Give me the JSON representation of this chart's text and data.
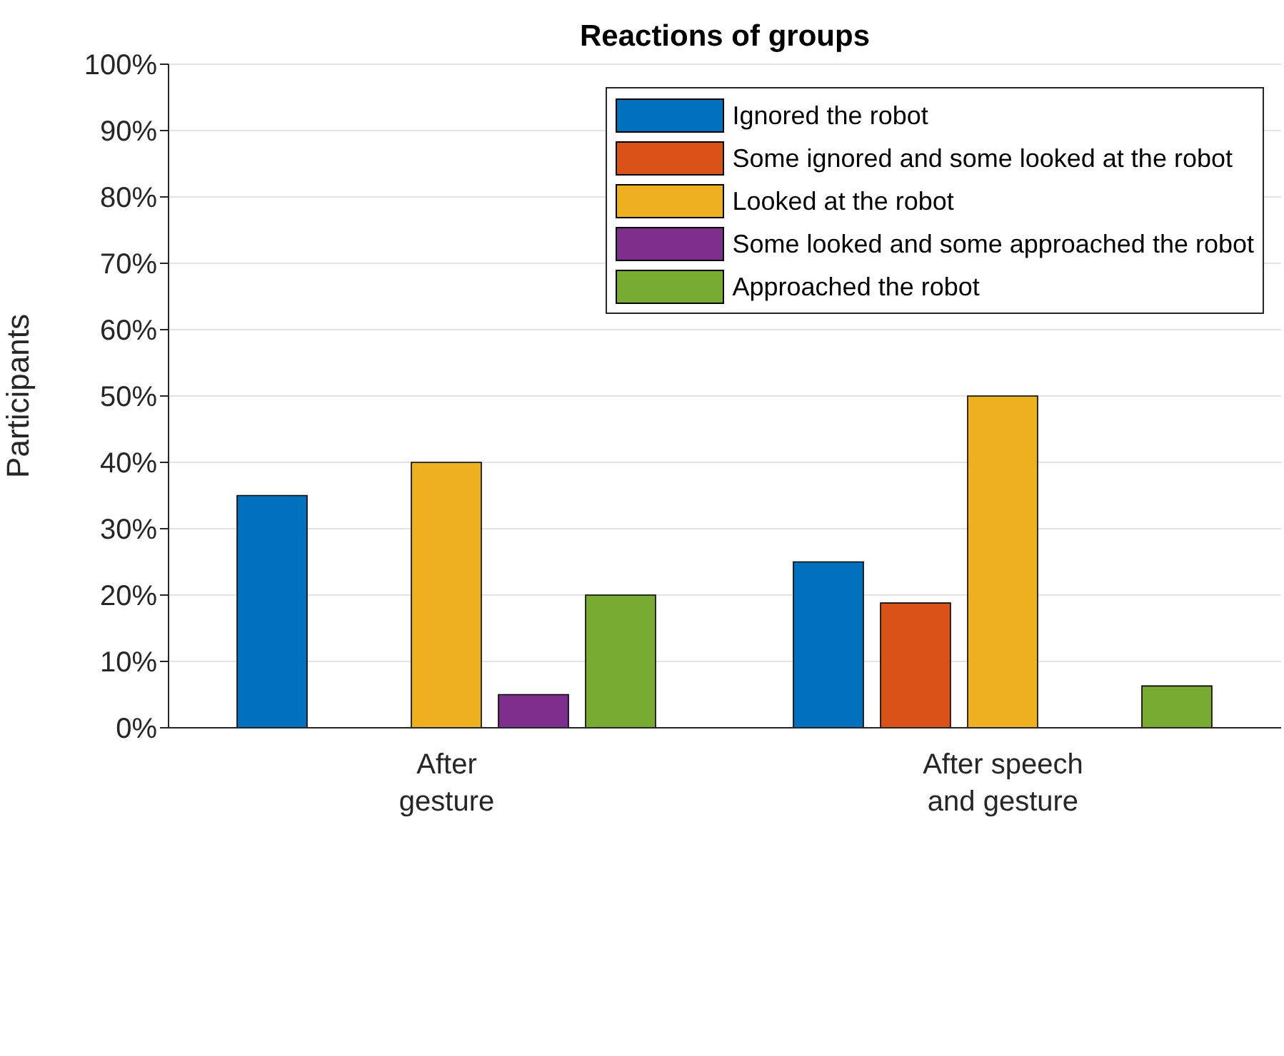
{
  "chart_data": {
    "type": "bar",
    "title": "Reactions of groups",
    "ylabel": "Participants",
    "categories": [
      "After gesture",
      "After speech and gesture"
    ],
    "series": [
      {
        "name": "Ignored the robot",
        "color": "#0072bd",
        "values": [
          35,
          25
        ]
      },
      {
        "name": "Some ignored and some looked at the robot",
        "color": "#d95319",
        "values": [
          0,
          18.8
        ]
      },
      {
        "name": "Looked at the robot",
        "color": "#edb120",
        "values": [
          40,
          50
        ]
      },
      {
        "name": "Some looked and some approached the robot",
        "color": "#7e2f8e",
        "values": [
          5,
          0
        ]
      },
      {
        "name": "Approached the robot",
        "color": "#77ac30",
        "values": [
          20,
          6.3
        ]
      }
    ],
    "ylim": [
      0,
      100
    ],
    "yticks": [
      {
        "value": 0,
        "label": "0%"
      },
      {
        "value": 10,
        "label": "10%"
      },
      {
        "value": 20,
        "label": "20%"
      },
      {
        "value": 30,
        "label": "30%"
      },
      {
        "value": 40,
        "label": "40%"
      },
      {
        "value": 50,
        "label": "50%"
      },
      {
        "value": 60,
        "label": "60%"
      },
      {
        "value": 70,
        "label": "70%"
      },
      {
        "value": 80,
        "label": "80%"
      },
      {
        "value": 90,
        "label": "90%"
      },
      {
        "value": 100,
        "label": "100%"
      }
    ],
    "grid": "y",
    "legend": "top right"
  }
}
